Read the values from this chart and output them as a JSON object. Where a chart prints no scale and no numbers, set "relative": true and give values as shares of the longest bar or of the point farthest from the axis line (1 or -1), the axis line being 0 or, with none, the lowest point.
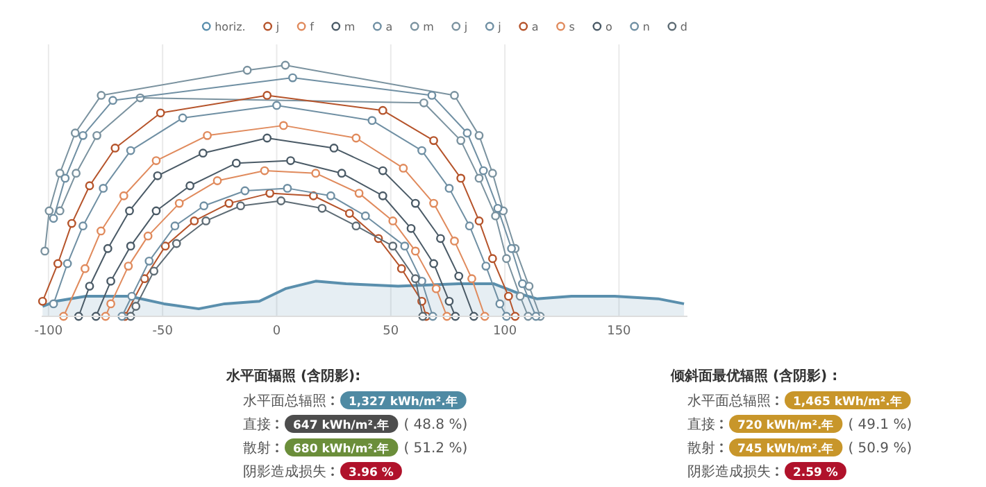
{
  "chart_data": [
    {
      "type": "line",
      "relative": true,
      "xlim": [
        -103,
        180
      ],
      "xticks": [
        -100,
        -50,
        0,
        50,
        100,
        150
      ],
      "grid": "x",
      "legend": "top",
      "marker": "circle",
      "line_style": "solid",
      "series": [
        {
          "name": "horiz.",
          "type": "area",
          "marker": "none",
          "color": "#5a8fad",
          "x": [
            -102.6,
            -96.9,
            -83.6,
            -64.6,
            -49.4,
            -34.2,
            -22.8,
            -7.6,
            3.8,
            17.1,
            30.4,
            53.2,
            79.8,
            95,
            106.4,
            114,
            129.2,
            148.1,
            167.1,
            178.5
          ],
          "values": [
            0.04,
            0.06,
            0.08,
            0.08,
            0.05,
            0.03,
            0.05,
            0.06,
            0.11,
            0.14,
            0.13,
            0.12,
            0.13,
            0.13,
            0.09,
            0.07,
            0.08,
            0.08,
            0.07,
            0.05
          ]
        },
        {
          "name": "j",
          "color": "#b5532a",
          "x": [
            -66.5,
            -57.9,
            -48.8,
            -36.1,
            -20.9,
            -3,
            16.1,
            31.9,
            44.6,
            54.7,
            63.6,
            65.5
          ],
          "values": [
            0,
            0.15,
            0.28,
            0.38,
            0.45,
            0.49,
            0.48,
            0.41,
            0.31,
            0.19,
            0.06,
            0
          ]
        },
        {
          "name": "f",
          "color": "#e08a5c",
          "x": [
            -75,
            -72.7,
            -65,
            -56.4,
            -42.7,
            -26,
            -5.3,
            17.1,
            36.1,
            50.9,
            60.8,
            69.9,
            74.6
          ],
          "values": [
            0,
            0.05,
            0.2,
            0.32,
            0.45,
            0.54,
            0.58,
            0.57,
            0.49,
            0.38,
            0.26,
            0.11,
            0
          ]
        },
        {
          "name": "m",
          "color": "#4a5a66",
          "x": [
            -86.8,
            -82,
            -74,
            -64.5,
            -52.2,
            -32.3,
            -4.2,
            25.1,
            46.5,
            60.8,
            71.8,
            79.8,
            86.4
          ],
          "values": [
            0,
            0.12,
            0.27,
            0.42,
            0.56,
            0.65,
            0.71,
            0.67,
            0.58,
            0.45,
            0.31,
            0.16,
            0
          ]
        },
        {
          "name": "a",
          "color": "#6f8fa3",
          "x": [
            -97.8,
            -91.7,
            -84.9,
            -76,
            -64,
            -41.2,
            0,
            41.8,
            63.6,
            75.6,
            84.5,
            91.7,
            97.8,
            100.7
          ],
          "values": [
            0.05,
            0.21,
            0.36,
            0.51,
            0.66,
            0.79,
            0.84,
            0.78,
            0.66,
            0.51,
            0.36,
            0.2,
            0.05,
            0
          ]
        },
        {
          "name": "m",
          "color": "#7a929f",
          "x": [
            -95,
            -87.9,
            -78.8,
            -59.8,
            64.5,
            80.7,
            88.7,
            95.9,
            100.7,
            106.7,
            110.2
          ],
          "values": [
            0.42,
            0.57,
            0.72,
            0.87,
            0.85,
            0.7,
            0.55,
            0.4,
            0.23,
            0.08,
            0
          ]
        },
        {
          "name": "j",
          "color": "#7a929f",
          "x": [
            -101.6,
            -99.7,
            -95,
            -88.3,
            -76.9,
            -12.9,
            3.8,
            77.9,
            88.7,
            94.6,
            99.3,
            104.5,
            110.6,
            115.5
          ],
          "values": [
            0.26,
            0.42,
            0.57,
            0.73,
            0.88,
            0.98,
            1,
            0.88,
            0.72,
            0.57,
            0.42,
            0.27,
            0.12,
            0
          ]
        },
        {
          "name": "j",
          "color": "#6f8fa3",
          "x": [
            -97.8,
            -92.7,
            -84.9,
            -71.8,
            7,
            68,
            83.5,
            90.6,
            96.9,
            102.9,
            107.7,
            113.6
          ],
          "values": [
            0.39,
            0.55,
            0.72,
            0.86,
            0.95,
            0.88,
            0.73,
            0.58,
            0.43,
            0.27,
            0.13,
            0
          ]
        },
        {
          "name": "a",
          "color": "#b5532a",
          "x": [
            -102.6,
            -95.9,
            -89.8,
            -82,
            -70.8,
            -50.9,
            -4.2,
            46.5,
            68.8,
            80.7,
            88.7,
            94.6,
            101.6,
            104.5
          ],
          "values": [
            0.06,
            0.21,
            0.37,
            0.52,
            0.67,
            0.81,
            0.88,
            0.82,
            0.7,
            0.55,
            0.38,
            0.23,
            0.08,
            0
          ]
        },
        {
          "name": "s",
          "color": "#e08a5c",
          "x": [
            -93.4,
            -84,
            -77,
            -67,
            -52.8,
            -30.4,
            3,
            34.8,
            55.5,
            68.8,
            77.9,
            85.5,
            91.2
          ],
          "values": [
            0,
            0.19,
            0.34,
            0.48,
            0.62,
            0.72,
            0.76,
            0.71,
            0.59,
            0.45,
            0.3,
            0.15,
            0
          ]
        },
        {
          "name": "o",
          "color": "#4a5a66",
          "x": [
            -79.2,
            -72.7,
            -64,
            -52.8,
            -38,
            -17.7,
            6.1,
            28.5,
            46.5,
            58.9,
            68.8,
            75.6,
            78.3
          ],
          "values": [
            0,
            0.14,
            0.28,
            0.42,
            0.52,
            0.61,
            0.62,
            0.57,
            0.48,
            0.35,
            0.21,
            0.06,
            0
          ]
        },
        {
          "name": "n",
          "color": "#6f8fa3",
          "x": [
            -67.8,
            -63.5,
            -55.9,
            -44.6,
            -31.9,
            -13.9,
            4.7,
            23.7,
            38.9,
            56.1,
            63.6,
            68.4
          ],
          "values": [
            0,
            0.08,
            0.22,
            0.36,
            0.44,
            0.5,
            0.51,
            0.48,
            0.4,
            0.28,
            0.14,
            0
          ]
        },
        {
          "name": "d",
          "color": "#5d6b74",
          "x": [
            -64,
            -61.7,
            -53.8,
            -43.9,
            -31,
            -15.8,
            1.9,
            19.9,
            34.8,
            50.9,
            60.8,
            64
          ],
          "values": [
            0,
            0.04,
            0.18,
            0.29,
            0.38,
            0.44,
            0.46,
            0.43,
            0.36,
            0.28,
            0.15,
            0
          ]
        }
      ]
    },
    {
      "type": "other",
      "title": "水平面辐照 (含阴影):",
      "categories": [
        "水平面总辐照",
        "直接",
        "散射",
        "阴影造成损失"
      ],
      "value_labels": [
        "1,327 kWh/m².年",
        "647 kWh/m².年",
        "680 kWh/m².年",
        "3.96 %"
      ],
      "colors": [
        "#4f8aa3",
        "#4d4d4d",
        "#6b8e3a",
        "#b0122b"
      ],
      "annotations": [
        "( 48.8 %)",
        "( 51.2 %)"
      ]
    },
    {
      "type": "other",
      "title": "倾斜面最优辐照 (含阴影) :",
      "categories": [
        "水平面总辐照",
        "直接",
        "散射",
        "阴影造成损失"
      ],
      "value_labels": [
        "1,465 kWh/m².年",
        "720 kWh/m².年",
        "745 kWh/m².年",
        "2.59 %"
      ],
      "colors": [
        "#c8962a",
        "#c8962a",
        "#c8962a",
        "#b0122b"
      ],
      "annotations": [
        "( 49.1 %)",
        "( 50.9 %)"
      ]
    }
  ]
}
